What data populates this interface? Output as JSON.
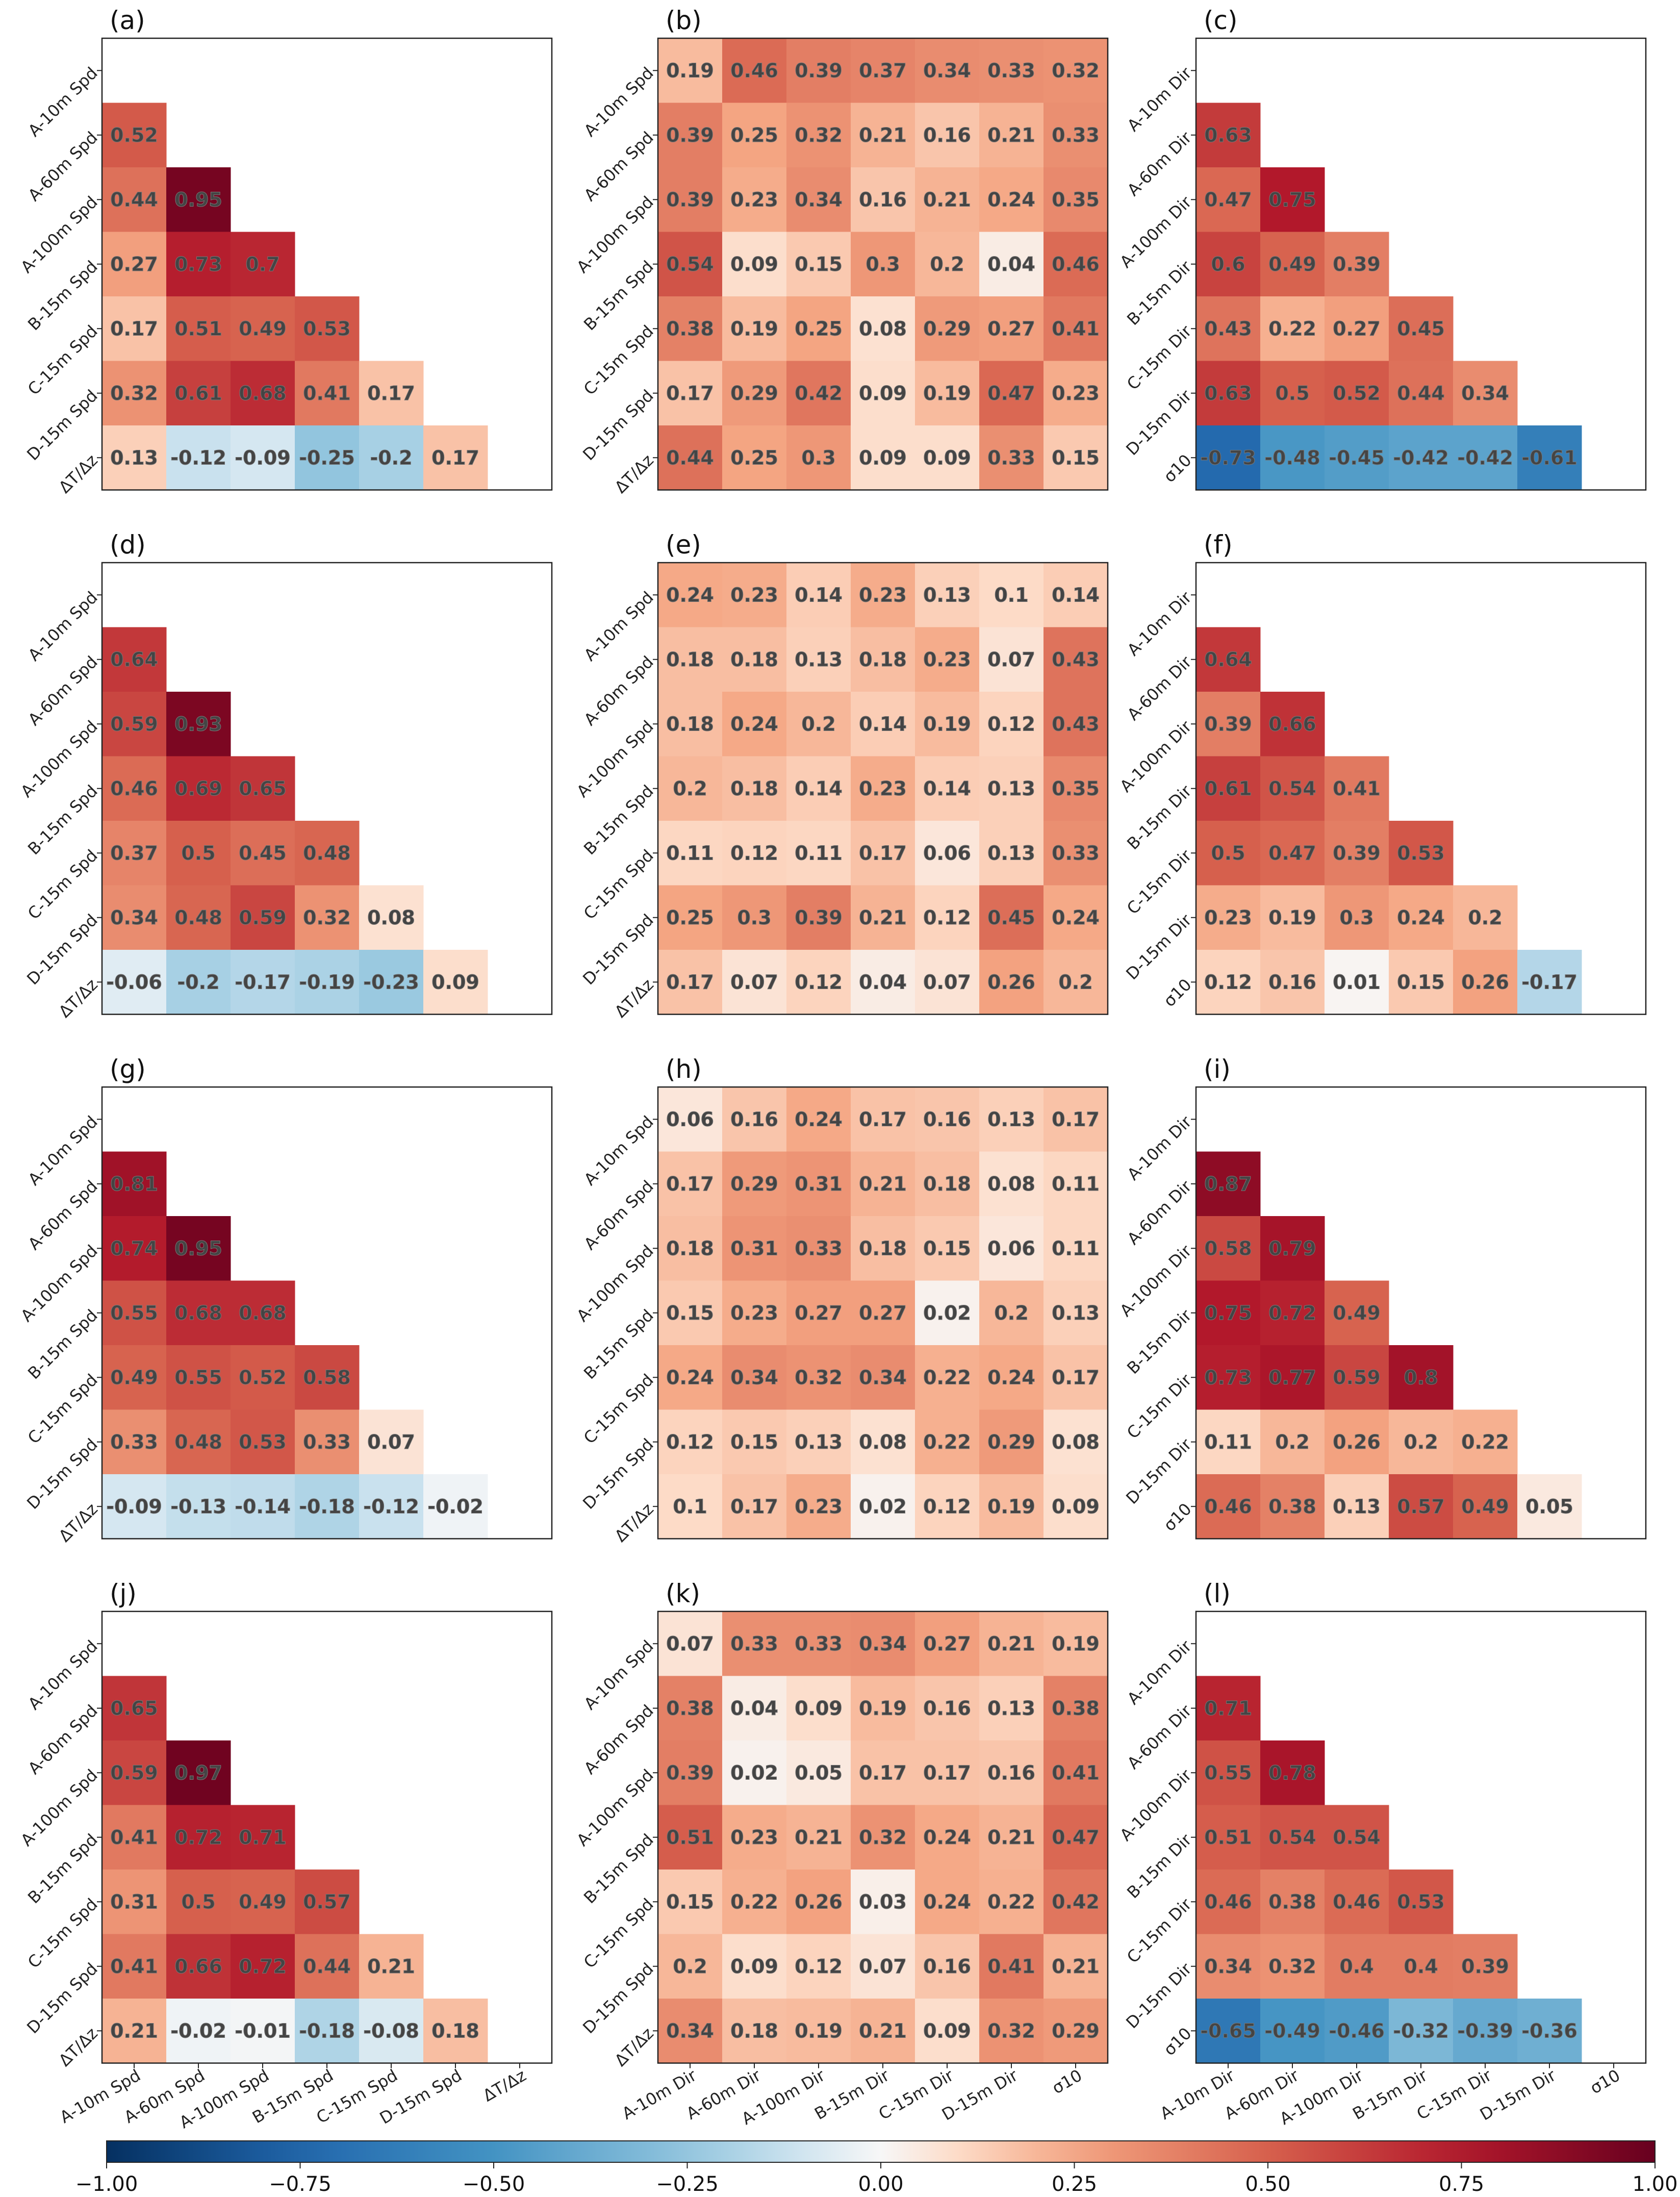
{
  "chart_data": [
    {
      "label": "(a)",
      "type": "heatmap",
      "triangular": true,
      "xticks": [
        "A-10m Spd",
        "A-60m Spd",
        "A-100m Spd",
        "B-15m Spd",
        "C-15m Spd",
        "D-15m Spd",
        "ΔT/Δz"
      ],
      "yticks": [
        "A-10m Spd",
        "A-60m Spd",
        "A-100m Spd",
        "B-15m Spd",
        "C-15m Spd",
        "D-15m Spd",
        "ΔT/Δz"
      ],
      "values": [
        [],
        [
          0.52
        ],
        [
          0.44,
          0.95
        ],
        [
          0.27,
          0.73,
          0.7
        ],
        [
          0.17,
          0.51,
          0.49,
          0.53
        ],
        [
          0.32,
          0.61,
          0.68,
          0.41,
          0.17
        ],
        [
          0.13,
          -0.12,
          -0.09,
          -0.25,
          -0.2,
          0.17
        ]
      ]
    },
    {
      "label": "(b)",
      "type": "heatmap",
      "triangular": false,
      "xticks": [
        "A-10m Dir",
        "A-60m Dir",
        "A-100m Dir",
        "B-15m Dir",
        "C-15m Dir",
        "D-15m Dir",
        "σ10"
      ],
      "yticks": [
        "A-10m Spd",
        "A-60m Spd",
        "A-100m Spd",
        "B-15m Spd",
        "C-15m Spd",
        "D-15m Spd",
        "ΔT/Δz"
      ],
      "values": [
        [
          0.19,
          0.46,
          0.39,
          0.37,
          0.34,
          0.33,
          0.32
        ],
        [
          0.39,
          0.25,
          0.32,
          0.21,
          0.16,
          0.21,
          0.33
        ],
        [
          0.39,
          0.23,
          0.34,
          0.16,
          0.21,
          0.24,
          0.35
        ],
        [
          0.54,
          0.09,
          0.15,
          0.3,
          0.2,
          0.04,
          0.46
        ],
        [
          0.38,
          0.19,
          0.25,
          0.08,
          0.29,
          0.27,
          0.41
        ],
        [
          0.17,
          0.29,
          0.42,
          0.09,
          0.19,
          0.47,
          0.23
        ],
        [
          0.44,
          0.25,
          0.3,
          0.09,
          0.09,
          0.33,
          0.15
        ]
      ]
    },
    {
      "label": "(c)",
      "type": "heatmap",
      "triangular": true,
      "xticks": [
        "A-10m Dir",
        "A-60m Dir",
        "A-100m Dir",
        "B-15m Dir",
        "C-15m Dir",
        "D-15m Dir",
        "σ10"
      ],
      "yticks": [
        "A-10m Dir",
        "A-60m Dir",
        "A-100m Dir",
        "B-15m Dir",
        "C-15m Dir",
        "D-15m Dir",
        "σ10"
      ],
      "values": [
        [],
        [
          0.63
        ],
        [
          0.47,
          0.75
        ],
        [
          0.6,
          0.49,
          0.39
        ],
        [
          0.43,
          0.22,
          0.27,
          0.45
        ],
        [
          0.63,
          0.5,
          0.52,
          0.44,
          0.34
        ],
        [
          -0.73,
          -0.48,
          -0.45,
          -0.42,
          -0.42,
          -0.61
        ]
      ]
    },
    {
      "label": "(d)",
      "type": "heatmap",
      "triangular": true,
      "xticks": [
        "A-10m Spd",
        "A-60m Spd",
        "A-100m Spd",
        "B-15m Spd",
        "C-15m Spd",
        "D-15m Spd",
        "ΔT/Δz"
      ],
      "yticks": [
        "A-10m Spd",
        "A-60m Spd",
        "A-100m Spd",
        "B-15m Spd",
        "C-15m Spd",
        "D-15m Spd",
        "ΔT/Δz"
      ],
      "values": [
        [],
        [
          0.64
        ],
        [
          0.59,
          0.93
        ],
        [
          0.46,
          0.69,
          0.65
        ],
        [
          0.37,
          0.5,
          0.45,
          0.48
        ],
        [
          0.34,
          0.48,
          0.59,
          0.32,
          0.08
        ],
        [
          -0.06,
          -0.2,
          -0.17,
          -0.19,
          -0.23,
          0.09
        ]
      ]
    },
    {
      "label": "(e)",
      "type": "heatmap",
      "triangular": false,
      "xticks": [
        "A-10m Dir",
        "A-60m Dir",
        "A-100m Dir",
        "B-15m Dir",
        "C-15m Dir",
        "D-15m Dir",
        "σ10"
      ],
      "yticks": [
        "A-10m Spd",
        "A-60m Spd",
        "A-100m Spd",
        "B-15m Spd",
        "C-15m Spd",
        "D-15m Spd",
        "ΔT/Δz"
      ],
      "values": [
        [
          0.24,
          0.23,
          0.14,
          0.23,
          0.13,
          0.1,
          0.14
        ],
        [
          0.18,
          0.18,
          0.13,
          0.18,
          0.23,
          0.07,
          0.43
        ],
        [
          0.18,
          0.24,
          0.2,
          0.14,
          0.19,
          0.12,
          0.43
        ],
        [
          0.2,
          0.18,
          0.14,
          0.23,
          0.14,
          0.13,
          0.35
        ],
        [
          0.11,
          0.12,
          0.11,
          0.17,
          0.06,
          0.13,
          0.33
        ],
        [
          0.25,
          0.3,
          0.39,
          0.21,
          0.12,
          0.45,
          0.24
        ],
        [
          0.17,
          0.07,
          0.12,
          0.04,
          0.07,
          0.26,
          0.2
        ]
      ]
    },
    {
      "label": "(f)",
      "type": "heatmap",
      "triangular": true,
      "xticks": [
        "A-10m Dir",
        "A-60m Dir",
        "A-100m Dir",
        "B-15m Dir",
        "C-15m Dir",
        "D-15m Dir",
        "σ10"
      ],
      "yticks": [
        "A-10m Dir",
        "A-60m Dir",
        "A-100m Dir",
        "B-15m Dir",
        "C-15m Dir",
        "D-15m Dir",
        "σ10"
      ],
      "values": [
        [],
        [
          0.64
        ],
        [
          0.39,
          0.66
        ],
        [
          0.61,
          0.54,
          0.41
        ],
        [
          0.5,
          0.47,
          0.39,
          0.53
        ],
        [
          0.23,
          0.19,
          0.3,
          0.24,
          0.2
        ],
        [
          0.12,
          0.16,
          0.01,
          0.15,
          0.26,
          -0.17
        ]
      ]
    },
    {
      "label": "(g)",
      "type": "heatmap",
      "triangular": true,
      "xticks": [
        "A-10m Spd",
        "A-60m Spd",
        "A-100m Spd",
        "B-15m Spd",
        "C-15m Spd",
        "D-15m Spd",
        "ΔT/Δz"
      ],
      "yticks": [
        "A-10m Spd",
        "A-60m Spd",
        "A-100m Spd",
        "B-15m Spd",
        "C-15m Spd",
        "D-15m Spd",
        "ΔT/Δz"
      ],
      "values": [
        [],
        [
          0.81
        ],
        [
          0.74,
          0.95
        ],
        [
          0.55,
          0.68,
          0.68
        ],
        [
          0.49,
          0.55,
          0.52,
          0.58
        ],
        [
          0.33,
          0.48,
          0.53,
          0.33,
          0.07
        ],
        [
          -0.09,
          -0.13,
          -0.14,
          -0.18,
          -0.12,
          -0.02
        ]
      ]
    },
    {
      "label": "(h)",
      "type": "heatmap",
      "triangular": false,
      "xticks": [
        "A-10m Dir",
        "A-60m Dir",
        "A-100m Dir",
        "B-15m Dir",
        "C-15m Dir",
        "D-15m Dir",
        "σ10"
      ],
      "yticks": [
        "A-10m Spd",
        "A-60m Spd",
        "A-100m Spd",
        "B-15m Spd",
        "C-15m Spd",
        "D-15m Spd",
        "ΔT/Δz"
      ],
      "values": [
        [
          0.06,
          0.16,
          0.24,
          0.17,
          0.16,
          0.13,
          0.17
        ],
        [
          0.17,
          0.29,
          0.31,
          0.21,
          0.18,
          0.08,
          0.11
        ],
        [
          0.18,
          0.31,
          0.33,
          0.18,
          0.15,
          0.06,
          0.11
        ],
        [
          0.15,
          0.23,
          0.27,
          0.27,
          0.02,
          0.2,
          0.13
        ],
        [
          0.24,
          0.34,
          0.32,
          0.34,
          0.22,
          0.24,
          0.17
        ],
        [
          0.12,
          0.15,
          0.13,
          0.08,
          0.22,
          0.29,
          0.08
        ],
        [
          0.1,
          0.17,
          0.23,
          0.02,
          0.12,
          0.19,
          0.09
        ]
      ]
    },
    {
      "label": "(i)",
      "type": "heatmap",
      "triangular": true,
      "xticks": [
        "A-10m Dir",
        "A-60m Dir",
        "A-100m Dir",
        "B-15m Dir",
        "C-15m Dir",
        "D-15m Dir",
        "σ10"
      ],
      "yticks": [
        "A-10m Dir",
        "A-60m Dir",
        "A-100m Dir",
        "B-15m Dir",
        "C-15m Dir",
        "D-15m Dir",
        "σ10"
      ],
      "values": [
        [],
        [
          0.87
        ],
        [
          0.58,
          0.79
        ],
        [
          0.75,
          0.72,
          0.49
        ],
        [
          0.73,
          0.77,
          0.59,
          0.8
        ],
        [
          0.11,
          0.2,
          0.26,
          0.2,
          0.22
        ],
        [
          0.46,
          0.38,
          0.13,
          0.57,
          0.49,
          0.05
        ]
      ]
    },
    {
      "label": "(j)",
      "type": "heatmap",
      "triangular": true,
      "xticks": [
        "A-10m Spd",
        "A-60m Spd",
        "A-100m Spd",
        "B-15m Spd",
        "C-15m Spd",
        "D-15m Spd",
        "ΔT/Δz"
      ],
      "yticks": [
        "A-10m Spd",
        "A-60m Spd",
        "A-100m Spd",
        "B-15m Spd",
        "C-15m Spd",
        "D-15m Spd",
        "ΔT/Δz"
      ],
      "values": [
        [],
        [
          0.65
        ],
        [
          0.59,
          0.97
        ],
        [
          0.41,
          0.72,
          0.71
        ],
        [
          0.31,
          0.5,
          0.49,
          0.57
        ],
        [
          0.41,
          0.66,
          0.72,
          0.44,
          0.21
        ],
        [
          0.21,
          -0.02,
          -0.01,
          -0.18,
          -0.08,
          0.18
        ]
      ]
    },
    {
      "label": "(k)",
      "type": "heatmap",
      "triangular": false,
      "xticks": [
        "A-10m Dir",
        "A-60m Dir",
        "A-100m Dir",
        "B-15m Dir",
        "C-15m Dir",
        "D-15m Dir",
        "σ10"
      ],
      "yticks": [
        "A-10m Spd",
        "A-60m Spd",
        "A-100m Spd",
        "B-15m Spd",
        "C-15m Spd",
        "D-15m Spd",
        "ΔT/Δz"
      ],
      "values": [
        [
          0.07,
          0.33,
          0.33,
          0.34,
          0.27,
          0.21,
          0.19
        ],
        [
          0.38,
          0.04,
          0.09,
          0.19,
          0.16,
          0.13,
          0.38
        ],
        [
          0.39,
          0.02,
          0.05,
          0.17,
          0.17,
          0.16,
          0.41
        ],
        [
          0.51,
          0.23,
          0.21,
          0.32,
          0.24,
          0.21,
          0.47
        ],
        [
          0.15,
          0.22,
          0.26,
          0.03,
          0.24,
          0.22,
          0.42
        ],
        [
          0.2,
          0.09,
          0.12,
          0.07,
          0.16,
          0.41,
          0.21
        ],
        [
          0.34,
          0.18,
          0.19,
          0.21,
          0.09,
          0.32,
          0.29
        ]
      ]
    },
    {
      "label": "(l)",
      "type": "heatmap",
      "triangular": true,
      "xticks": [
        "A-10m Dir",
        "A-60m Dir",
        "A-100m Dir",
        "B-15m Dir",
        "C-15m Dir",
        "D-15m Dir",
        "σ10"
      ],
      "yticks": [
        "A-10m Dir",
        "A-60m Dir",
        "A-100m Dir",
        "B-15m Dir",
        "C-15m Dir",
        "D-15m Dir",
        "σ10"
      ],
      "values": [
        [],
        [
          0.71
        ],
        [
          0.55,
          0.78
        ],
        [
          0.51,
          0.54,
          0.54
        ],
        [
          0.46,
          0.38,
          0.46,
          0.53
        ],
        [
          0.34,
          0.32,
          0.4,
          0.4,
          0.39
        ],
        [
          -0.65,
          -0.49,
          -0.46,
          -0.32,
          -0.39,
          -0.36
        ]
      ]
    }
  ],
  "colorbar": {
    "colormap": "RdBu_r",
    "range": [
      -1.0,
      1.0
    ],
    "ticks": [
      "−1.00",
      "−0.75",
      "−0.50",
      "−0.25",
      "0.00",
      "0.25",
      "0.50",
      "0.75",
      "1.00"
    ]
  }
}
